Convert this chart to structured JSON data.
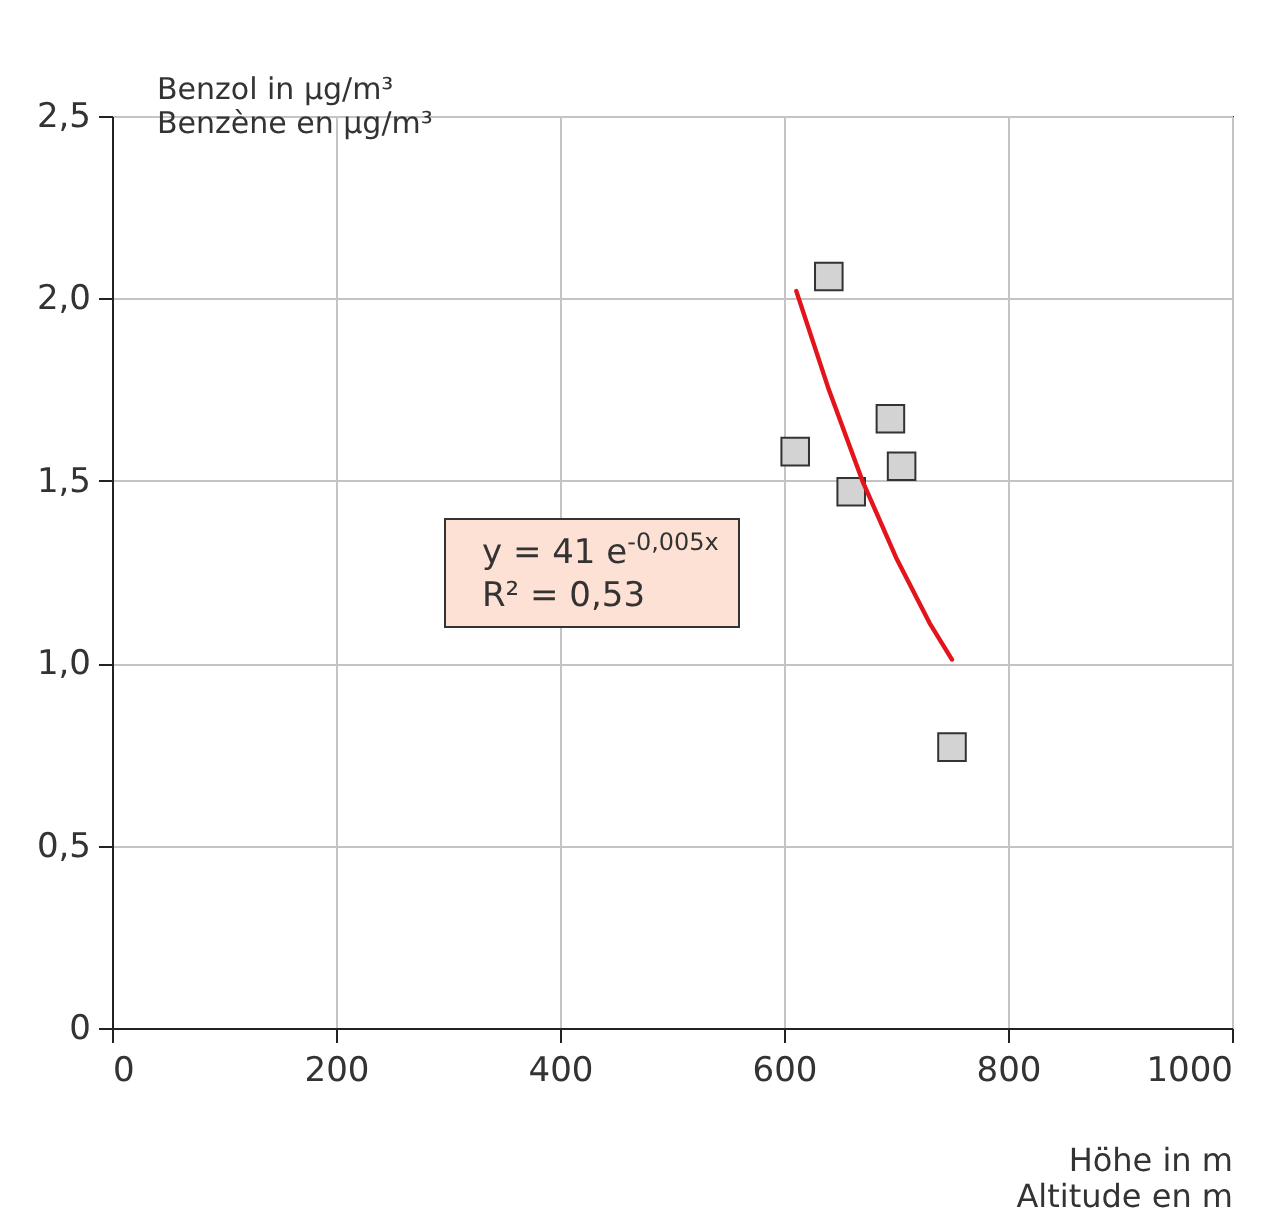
{
  "chart_data": {
    "type": "scatter",
    "ylabel": "Benzol in μg/m³\nBenzène en μg/m³",
    "xlabel": "Höhe in m\nAltitude en m",
    "xlim": [
      0,
      1000
    ],
    "xticks": [
      0,
      200,
      400,
      600,
      800,
      1000
    ],
    "ylim": [
      0,
      2.5
    ],
    "yticks": [
      0,
      {
        "value": 0.5,
        "label": "0,5"
      },
      {
        "value": 1,
        "label": "1,0"
      },
      {
        "value": 1.5,
        "label": "1,5"
      },
      {
        "value": 2,
        "label": "2,0"
      },
      {
        "value": 2.5,
        "label": "2,5"
      }
    ],
    "grid": true,
    "series": [
      {
        "color": "#d3d3d3",
        "marker": "square",
        "x": [
          640,
          610,
          660,
          695,
          705,
          750
        ],
        "values": [
          2.06,
          1.58,
          1.47,
          1.67,
          1.54,
          0.77
        ]
      },
      {
        "type": "line",
        "color": "#e3141b",
        "x": [
          611,
          640,
          670,
          700,
          730,
          750
        ],
        "values": [
          2.02,
          1.75,
          1.5,
          1.29,
          1.11,
          1.01
        ]
      }
    ],
    "annotations": [
      "y = 41 e$^{-0,005x}$",
      "R² = 0,53"
    ]
  }
}
